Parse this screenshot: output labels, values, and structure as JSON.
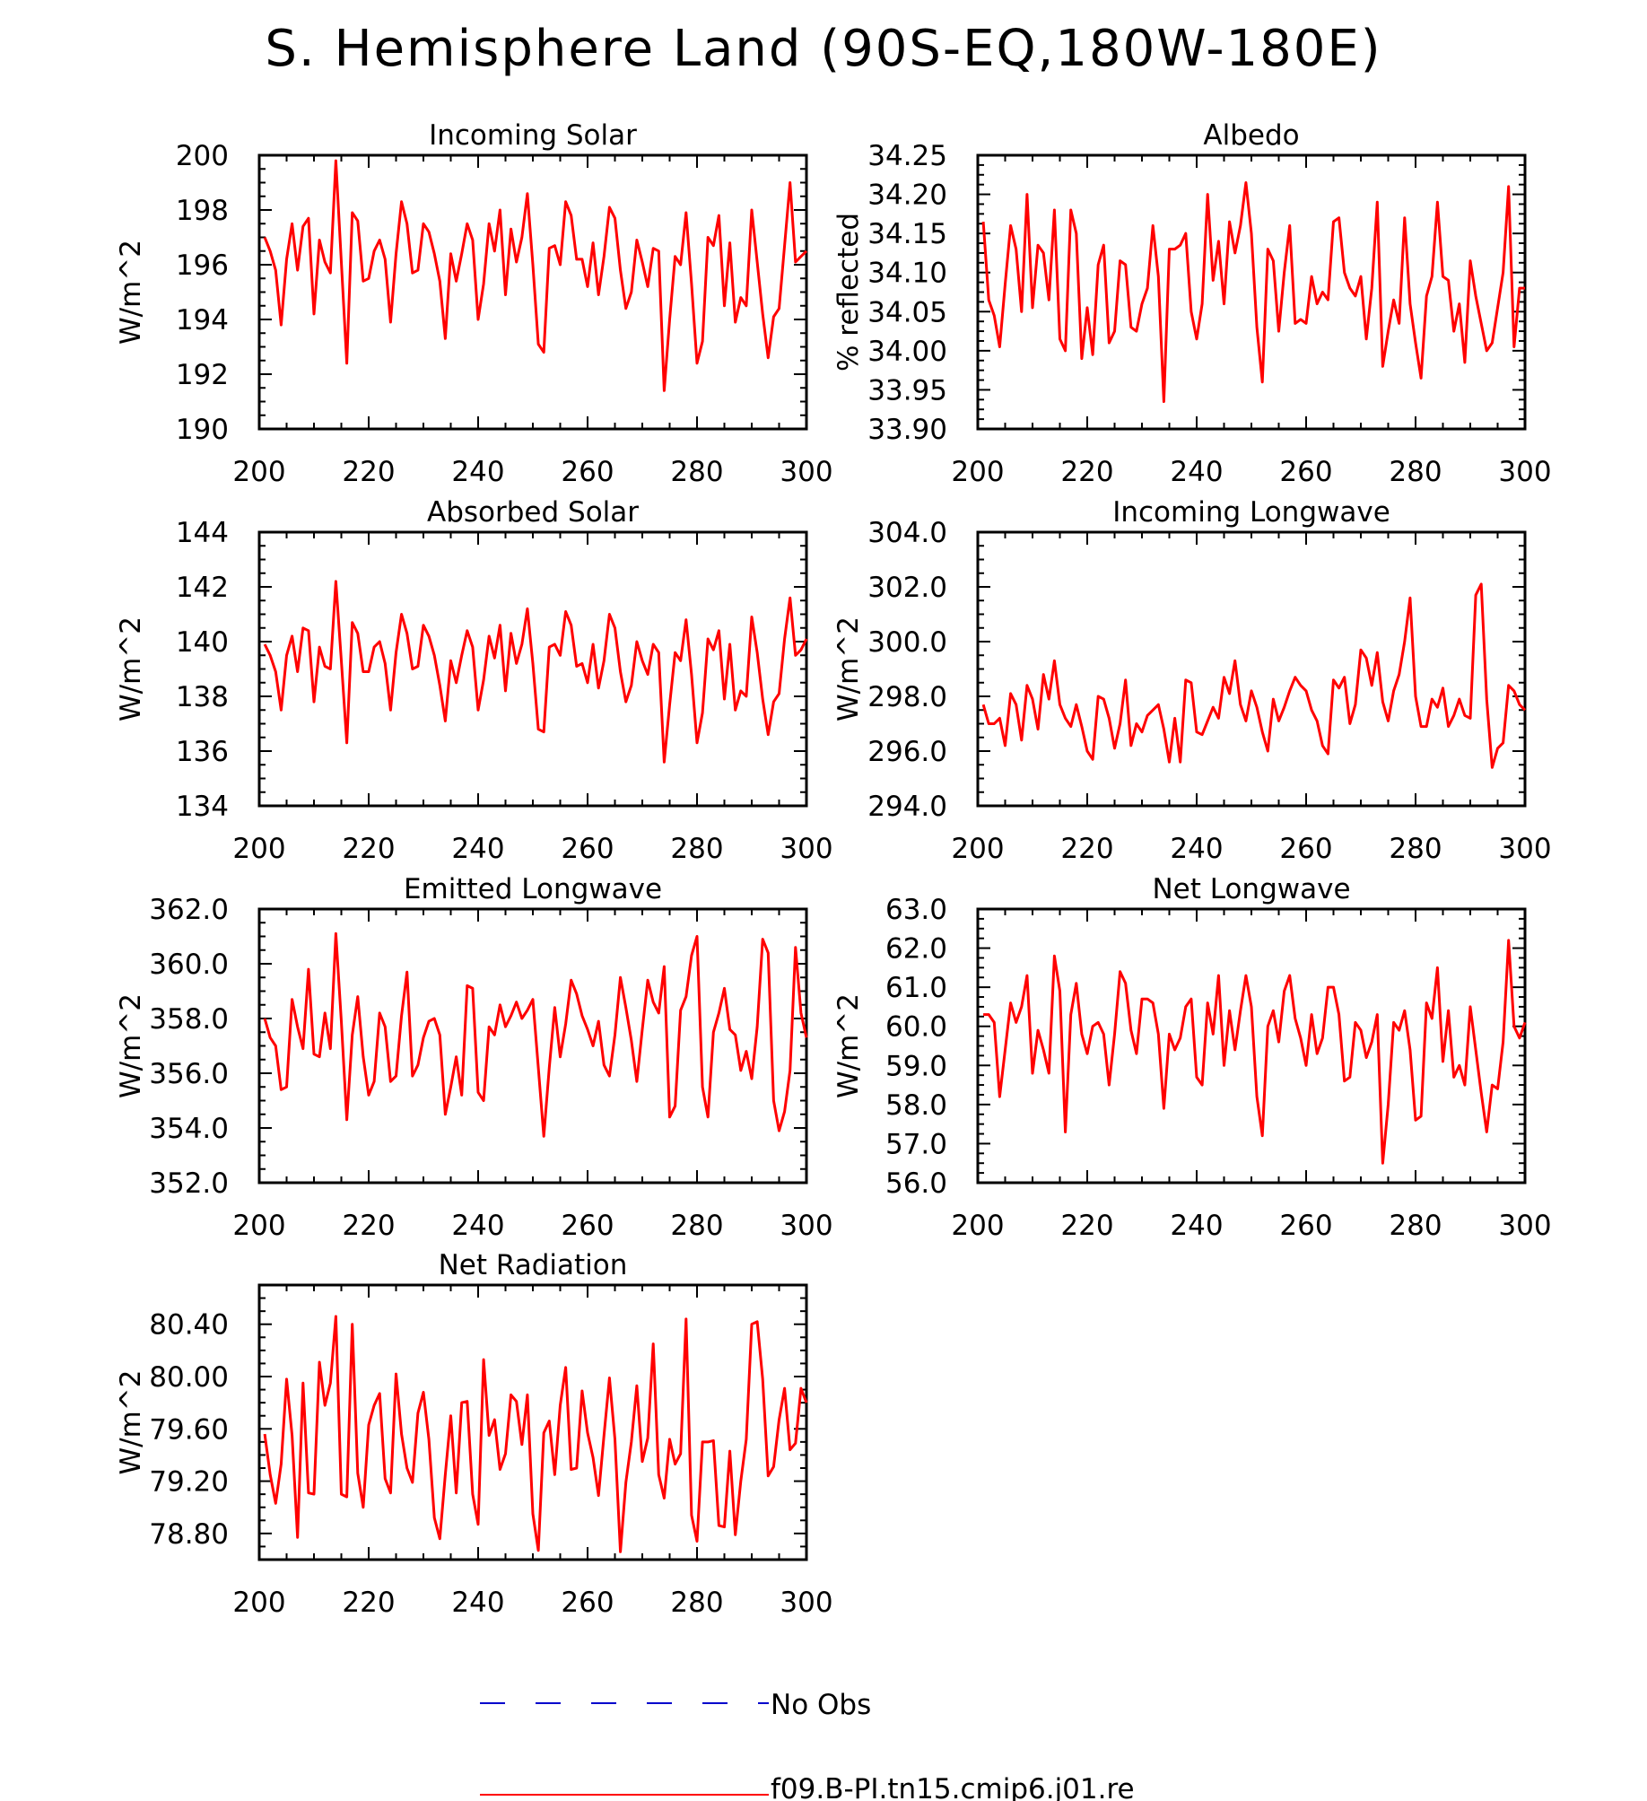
{
  "page_title": "S. Hemisphere Land (90S-EQ,180W-180E)",
  "colors": {
    "model": "#ff0000",
    "obs": "#0000cc",
    "axis": "#000000"
  },
  "legend": {
    "obs_label": "No Obs",
    "model_label": "f09.B-PI.tn15.cmip6.j01.re"
  },
  "chart_data": [
    {
      "type": "line",
      "title": "Incoming Solar",
      "xlabel": "",
      "ylabel": "W/m^2",
      "xlim": [
        200,
        300
      ],
      "ylim": [
        190,
        200
      ],
      "xticks": [
        "200",
        "220",
        "240",
        "260",
        "280",
        "300"
      ],
      "yticks": [
        "190",
        "192",
        "194",
        "196",
        "198",
        "200"
      ],
      "x_start": 201,
      "series": [
        {
          "values": [
            197.0,
            196.5,
            195.8,
            193.8,
            196.2,
            197.5,
            195.8,
            197.4,
            197.7,
            194.2,
            196.9,
            196.1,
            195.7,
            199.8,
            196.1,
            192.4,
            197.9,
            197.6,
            195.4,
            195.5,
            196.5,
            196.9,
            196.2,
            193.9,
            196.4,
            198.3,
            197.5,
            195.7,
            195.8,
            197.5,
            197.2,
            196.4,
            195.4,
            193.3,
            196.4,
            195.4,
            196.4,
            197.5,
            196.9,
            194.0,
            195.3,
            197.5,
            196.5,
            198.0,
            194.9,
            197.3,
            196.1,
            197.0,
            198.6,
            196.0,
            193.1,
            192.8,
            196.6,
            196.7,
            196.0,
            198.3,
            197.8,
            196.2,
            196.2,
            195.2,
            196.8,
            194.9,
            196.3,
            198.1,
            197.7,
            195.8,
            194.4,
            195.0,
            196.9,
            196.1,
            195.2,
            196.6,
            196.5,
            191.4,
            194.0,
            196.3,
            196.0,
            197.9,
            195.3,
            192.4,
            193.2,
            197.0,
            196.7,
            197.8,
            194.5,
            196.8,
            193.9,
            194.8,
            194.5,
            198.0,
            196.1,
            194.2,
            192.6,
            194.1,
            194.4,
            196.7,
            199.0,
            196.1,
            196.3,
            196.5
          ]
        }
      ]
    },
    {
      "type": "line",
      "title": "Albedo",
      "xlabel": "",
      "ylabel": "% reflected",
      "xlim": [
        200,
        300
      ],
      "ylim": [
        33.9,
        34.25
      ],
      "xticks": [
        "200",
        "220",
        "240",
        "260",
        "280",
        "300"
      ],
      "yticks": [
        "33.90",
        "33.95",
        "34.00",
        "34.05",
        "34.10",
        "34.15",
        "34.20",
        "34.25"
      ],
      "x_start": 201,
      "series": [
        {
          "values": [
            34.165,
            34.065,
            34.045,
            34.005,
            34.085,
            34.16,
            34.13,
            34.05,
            34.2,
            34.055,
            34.135,
            34.125,
            34.065,
            34.18,
            34.015,
            34.0,
            34.18,
            34.15,
            33.99,
            34.055,
            33.995,
            34.11,
            34.135,
            34.01,
            34.025,
            34.115,
            34.11,
            34.03,
            34.025,
            34.06,
            34.08,
            34.16,
            34.095,
            33.935,
            34.13,
            34.13,
            34.135,
            34.15,
            34.05,
            34.015,
            34.06,
            34.2,
            34.09,
            34.14,
            34.06,
            34.165,
            34.125,
            34.16,
            34.215,
            34.15,
            34.03,
            33.96,
            34.13,
            34.115,
            34.025,
            34.1,
            34.16,
            34.035,
            34.04,
            34.035,
            34.095,
            34.06,
            34.075,
            34.065,
            34.165,
            34.17,
            34.1,
            34.08,
            34.07,
            34.095,
            34.015,
            34.08,
            34.19,
            33.98,
            34.025,
            34.065,
            34.035,
            34.17,
            34.06,
            34.01,
            33.965,
            34.07,
            34.095,
            34.19,
            34.095,
            34.09,
            34.025,
            34.06,
            33.985,
            34.115,
            34.07,
            34.035,
            34.0,
            34.01,
            34.055,
            34.1,
            34.21,
            34.005,
            34.08,
            34.08
          ]
        }
      ]
    },
    {
      "type": "line",
      "title": "Absorbed Solar",
      "xlabel": "",
      "ylabel": "W/m^2",
      "xlim": [
        200,
        300
      ],
      "ylim": [
        134,
        144
      ],
      "xticks": [
        "200",
        "220",
        "240",
        "260",
        "280",
        "300"
      ],
      "yticks": [
        "134",
        "136",
        "138",
        "140",
        "142",
        "144"
      ],
      "x_start": 201,
      "series": [
        {
          "values": [
            139.9,
            139.5,
            138.9,
            137.5,
            139.5,
            140.2,
            138.9,
            140.5,
            140.4,
            137.8,
            139.8,
            139.1,
            139.0,
            142.2,
            139.3,
            136.3,
            140.7,
            140.3,
            138.9,
            138.9,
            139.8,
            140.0,
            139.2,
            137.5,
            139.6,
            141.0,
            140.3,
            139.0,
            139.1,
            140.6,
            140.2,
            139.5,
            138.4,
            137.1,
            139.3,
            138.5,
            139.5,
            140.4,
            139.8,
            137.5,
            138.6,
            140.2,
            139.4,
            140.6,
            138.2,
            140.3,
            139.2,
            139.9,
            141.2,
            139.2,
            136.8,
            136.7,
            139.8,
            139.9,
            139.5,
            141.1,
            140.6,
            139.1,
            139.2,
            138.5,
            139.9,
            138.3,
            139.3,
            141.0,
            140.5,
            138.9,
            137.8,
            138.4,
            140.0,
            139.3,
            138.8,
            139.9,
            139.6,
            135.6,
            137.7,
            139.6,
            139.3,
            140.8,
            138.8,
            136.3,
            137.4,
            140.1,
            139.7,
            140.4,
            137.9,
            139.9,
            137.5,
            138.2,
            138.0,
            140.9,
            139.6,
            137.9,
            136.6,
            137.8,
            138.1,
            140.1,
            141.6,
            139.5,
            139.7,
            140.1
          ]
        }
      ]
    },
    {
      "type": "line",
      "title": "Incoming Longwave",
      "xlabel": "",
      "ylabel": "W/m^2",
      "xlim": [
        200,
        300
      ],
      "ylim": [
        294,
        304
      ],
      "xticks": [
        "200",
        "220",
        "240",
        "260",
        "280",
        "300"
      ],
      "yticks": [
        "294.0",
        "296.0",
        "298.0",
        "300.0",
        "302.0",
        "304.0"
      ],
      "x_start": 201,
      "series": [
        {
          "values": [
            297.7,
            297.0,
            297.0,
            297.2,
            296.2,
            298.1,
            297.7,
            296.4,
            298.4,
            297.9,
            296.8,
            298.8,
            297.9,
            299.3,
            297.7,
            297.2,
            296.9,
            297.7,
            296.9,
            296.0,
            295.7,
            298.0,
            297.9,
            297.2,
            296.1,
            297.0,
            298.6,
            296.2,
            297.0,
            296.7,
            297.3,
            297.5,
            297.7,
            296.8,
            295.6,
            297.2,
            295.6,
            298.6,
            298.5,
            296.7,
            296.6,
            297.1,
            297.6,
            297.2,
            298.7,
            298.1,
            299.3,
            297.7,
            297.1,
            298.2,
            297.6,
            296.7,
            296.0,
            297.9,
            297.1,
            297.6,
            298.2,
            298.7,
            298.4,
            298.2,
            297.5,
            297.1,
            296.2,
            295.9,
            298.6,
            298.3,
            298.7,
            297.0,
            297.7,
            299.7,
            299.4,
            298.4,
            299.6,
            297.8,
            297.1,
            298.2,
            298.8,
            300.0,
            301.6,
            298.0,
            296.9,
            296.9,
            297.9,
            297.6,
            298.3,
            296.9,
            297.3,
            297.9,
            297.3,
            297.2,
            301.7,
            302.1,
            297.9,
            295.4,
            296.1,
            296.3,
            298.4,
            298.2,
            297.7,
            297.5
          ]
        }
      ]
    },
    {
      "type": "line",
      "title": "Emitted Longwave",
      "xlabel": "",
      "ylabel": "W/m^2",
      "xlim": [
        200,
        300
      ],
      "ylim": [
        352,
        362
      ],
      "xticks": [
        "200",
        "220",
        "240",
        "260",
        "280",
        "300"
      ],
      "yticks": [
        "352.0",
        "354.0",
        "356.0",
        "358.0",
        "360.0",
        "362.0"
      ],
      "x_start": 201,
      "series": [
        {
          "values": [
            358.0,
            357.3,
            357.0,
            355.4,
            355.5,
            358.7,
            357.7,
            356.9,
            359.8,
            356.7,
            356.6,
            358.2,
            356.9,
            361.1,
            357.9,
            354.3,
            357.4,
            358.8,
            356.6,
            355.2,
            355.7,
            358.2,
            357.7,
            355.7,
            355.9,
            358.1,
            359.7,
            355.9,
            356.3,
            357.3,
            357.9,
            358.0,
            357.4,
            354.5,
            355.5,
            356.6,
            355.2,
            359.2,
            359.1,
            355.3,
            355.0,
            357.7,
            357.4,
            358.5,
            357.7,
            358.1,
            358.6,
            358.0,
            358.3,
            358.7,
            356.2,
            353.7,
            356.2,
            358.4,
            356.6,
            357.8,
            359.4,
            358.9,
            358.1,
            357.6,
            357.0,
            357.9,
            356.3,
            355.9,
            357.4,
            359.5,
            358.4,
            357.2,
            355.7,
            357.6,
            359.4,
            358.6,
            358.2,
            359.9,
            354.4,
            354.8,
            358.3,
            358.8,
            360.3,
            361.0,
            355.5,
            354.4,
            357.5,
            358.2,
            359.1,
            357.6,
            357.4,
            356.1,
            356.8,
            355.8,
            357.7,
            360.9,
            360.4,
            355.0,
            353.9,
            354.6,
            356.1,
            360.6,
            358.2,
            357.3
          ]
        }
      ]
    },
    {
      "type": "line",
      "title": "Net Longwave",
      "xlabel": "",
      "ylabel": "W/m^2",
      "xlim": [
        200,
        300
      ],
      "ylim": [
        56,
        63
      ],
      "xticks": [
        "200",
        "220",
        "240",
        "260",
        "280",
        "300"
      ],
      "yticks": [
        "56.0",
        "57.0",
        "58.0",
        "59.0",
        "60.0",
        "61.0",
        "62.0",
        "63.0"
      ],
      "x_start": 201,
      "series": [
        {
          "values": [
            60.3,
            60.3,
            60.1,
            58.2,
            59.4,
            60.6,
            60.1,
            60.5,
            61.3,
            58.8,
            59.9,
            59.4,
            58.8,
            61.8,
            60.9,
            57.3,
            60.3,
            61.1,
            59.8,
            59.3,
            60.0,
            60.1,
            59.8,
            58.5,
            59.8,
            61.4,
            61.1,
            59.9,
            59.3,
            60.7,
            60.7,
            60.6,
            59.8,
            57.9,
            59.8,
            59.4,
            59.7,
            60.5,
            60.7,
            58.7,
            58.5,
            60.6,
            59.8,
            61.3,
            59.0,
            60.4,
            59.4,
            60.4,
            61.3,
            60.5,
            58.2,
            57.2,
            60.0,
            60.4,
            59.6,
            60.9,
            61.3,
            60.2,
            59.7,
            59.0,
            60.3,
            59.3,
            59.7,
            61.0,
            61.0,
            60.3,
            58.6,
            58.7,
            60.1,
            59.9,
            59.2,
            59.6,
            60.3,
            56.5,
            58.0,
            60.1,
            59.9,
            60.4,
            59.4,
            57.6,
            57.7,
            60.6,
            60.2,
            61.5,
            59.1,
            60.4,
            58.7,
            59.0,
            58.5,
            60.5,
            59.4,
            58.3,
            57.3,
            58.5,
            58.4,
            59.6,
            62.2,
            60.0,
            59.7,
            60.1
          ]
        }
      ]
    },
    {
      "type": "line",
      "title": "Net Radiation",
      "xlabel": "",
      "ylabel": "W/m^2",
      "xlim": [
        200,
        300
      ],
      "ylim": [
        78.6,
        80.7
      ],
      "xticks": [
        "200",
        "220",
        "240",
        "260",
        "280",
        "300"
      ],
      "yticks": [
        "78.80",
        "79.20",
        "79.60",
        "80.00",
        "80.40"
      ],
      "x_start": 201,
      "series": [
        {
          "values": [
            79.56,
            79.25,
            79.03,
            79.33,
            79.98,
            79.55,
            78.77,
            79.95,
            79.11,
            79.1,
            80.11,
            79.78,
            79.95,
            80.46,
            79.1,
            79.08,
            80.4,
            79.26,
            79.0,
            79.63,
            79.78,
            79.87,
            79.22,
            79.11,
            80.02,
            79.56,
            79.3,
            79.19,
            79.72,
            79.88,
            79.52,
            78.92,
            78.76,
            79.25,
            79.7,
            79.11,
            79.8,
            79.81,
            79.1,
            78.87,
            80.13,
            79.55,
            79.67,
            79.29,
            79.41,
            79.86,
            79.81,
            79.48,
            79.86,
            78.95,
            78.67,
            79.57,
            79.66,
            79.25,
            79.78,
            80.07,
            79.29,
            79.3,
            79.89,
            79.57,
            79.38,
            79.09,
            79.55,
            79.99,
            79.52,
            78.66,
            79.19,
            79.5,
            79.93,
            79.35,
            79.53,
            80.25,
            79.25,
            79.07,
            79.52,
            79.33,
            79.41,
            80.44,
            78.94,
            78.74,
            79.5,
            79.5,
            79.51,
            78.86,
            78.85,
            79.43,
            78.79,
            79.2,
            79.52,
            80.4,
            80.42,
            79.98,
            79.24,
            79.31,
            79.67,
            79.91,
            79.44,
            79.49,
            79.91,
            79.8
          ]
        }
      ]
    }
  ]
}
